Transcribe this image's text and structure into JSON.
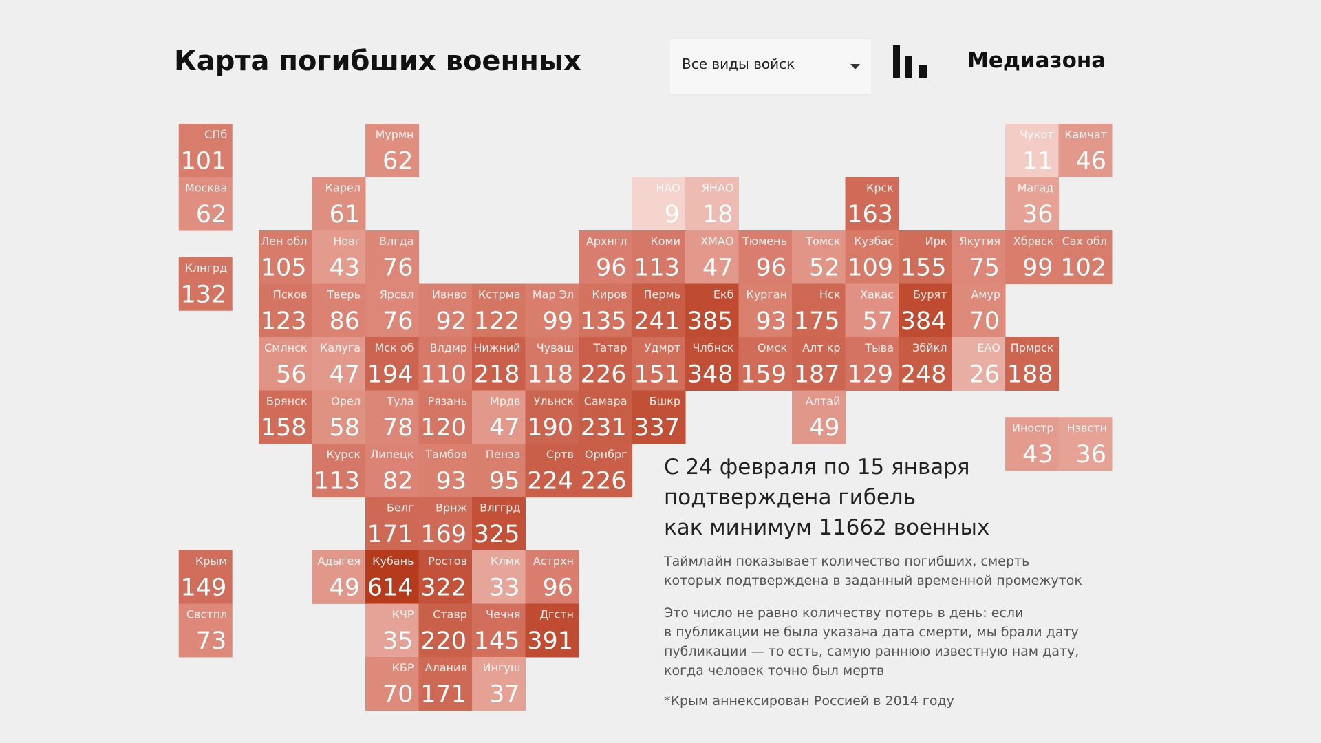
{
  "header": {
    "title": "Карта погибших военных",
    "dropdown": "Все виды войск",
    "brand": "Медиазона"
  },
  "tiles": [
    {
      "label": "СПб",
      "value": 101
    },
    {
      "label": "Мурмн",
      "value": 62
    },
    {
      "label": "Чукот",
      "value": 11
    },
    {
      "label": "Камчат",
      "value": 46
    },
    {
      "label": "Москва",
      "value": 62
    },
    {
      "label": "Карел",
      "value": 61
    },
    {
      "label": "НАО",
      "value": 9
    },
    {
      "label": "ЯНАО",
      "value": 18
    },
    {
      "label": "Крск",
      "value": 163
    },
    {
      "label": "Магад",
      "value": 36
    },
    {
      "label": "Лен обл",
      "value": 105
    },
    {
      "label": "Новг",
      "value": 43
    },
    {
      "label": "Влгда",
      "value": 76
    },
    {
      "label": "Архнгл",
      "value": 96
    },
    {
      "label": "Коми",
      "value": 113
    },
    {
      "label": "ХМАО",
      "value": 47
    },
    {
      "label": "Тюмень",
      "value": 96
    },
    {
      "label": "Томск",
      "value": 52
    },
    {
      "label": "Кузбас",
      "value": 109
    },
    {
      "label": "Ирк",
      "value": 155
    },
    {
      "label": "Якутия",
      "value": 75
    },
    {
      "label": "Хбрвск",
      "value": 99
    },
    {
      "label": "Сах обл",
      "value": 102
    },
    {
      "label": "Клнгрд",
      "value": 132
    },
    {
      "label": "Псков",
      "value": 123
    },
    {
      "label": "Тверь",
      "value": 86
    },
    {
      "label": "Ярсвл",
      "value": 76
    },
    {
      "label": "Ивнво",
      "value": 92
    },
    {
      "label": "Кстрма",
      "value": 122
    },
    {
      "label": "Мар Эл",
      "value": 99
    },
    {
      "label": "Киров",
      "value": 135
    },
    {
      "label": "Пермь",
      "value": 241
    },
    {
      "label": "Екб",
      "value": 385
    },
    {
      "label": "Курган",
      "value": 93
    },
    {
      "label": "Нск",
      "value": 175
    },
    {
      "label": "Хакас",
      "value": 57
    },
    {
      "label": "Бурят",
      "value": 384
    },
    {
      "label": "Амур",
      "value": 70
    },
    {
      "label": "Смлнск",
      "value": 56
    },
    {
      "label": "Калуга",
      "value": 47
    },
    {
      "label": "Мск об",
      "value": 194
    },
    {
      "label": "Влдмр",
      "value": 110
    },
    {
      "label": "Нижний",
      "value": 218
    },
    {
      "label": "Чуваш",
      "value": 118
    },
    {
      "label": "Татар",
      "value": 226
    },
    {
      "label": "Удмрт",
      "value": 151
    },
    {
      "label": "Члбнск",
      "value": 348
    },
    {
      "label": "Омск",
      "value": 159
    },
    {
      "label": "Алт кр",
      "value": 187
    },
    {
      "label": "Тыва",
      "value": 129
    },
    {
      "label": "Збйкл",
      "value": 248
    },
    {
      "label": "ЕАО",
      "value": 26
    },
    {
      "label": "Прмрск",
      "value": 188
    },
    {
      "label": "Брянск",
      "value": 158
    },
    {
      "label": "Орел",
      "value": 58
    },
    {
      "label": "Тула",
      "value": 78
    },
    {
      "label": "Рязань",
      "value": 120
    },
    {
      "label": "Мрдв",
      "value": 47
    },
    {
      "label": "Ульнск",
      "value": 190
    },
    {
      "label": "Самара",
      "value": 231
    },
    {
      "label": "Бшкр",
      "value": 337
    },
    {
      "label": "Алтай",
      "value": 49
    },
    {
      "label": "Иностр",
      "value": 43
    },
    {
      "label": "Нзвстн",
      "value": 36
    },
    {
      "label": "Курск",
      "value": 113
    },
    {
      "label": "Липецк",
      "value": 82
    },
    {
      "label": "Тамбов",
      "value": 93
    },
    {
      "label": "Пенза",
      "value": 95
    },
    {
      "label": "Сртв",
      "value": 224
    },
    {
      "label": "Орнбрг",
      "value": 226
    },
    {
      "label": "Белг",
      "value": 171
    },
    {
      "label": "Врнж",
      "value": 169
    },
    {
      "label": "Влггрд",
      "value": 325
    },
    {
      "label": "Крым",
      "value": 149
    },
    {
      "label": "Адыгея",
      "value": 49
    },
    {
      "label": "Кубань",
      "value": 614
    },
    {
      "label": "Ростов",
      "value": 322
    },
    {
      "label": "Клмк",
      "value": 33
    },
    {
      "label": "Астрхн",
      "value": 96
    },
    {
      "label": "Свстпл",
      "value": 73
    },
    {
      "label": "КЧР",
      "value": 35
    },
    {
      "label": "Ставр",
      "value": 220
    },
    {
      "label": "Чечня",
      "value": 145
    },
    {
      "label": "Дгстн",
      "value": 391
    },
    {
      "label": "КБР",
      "value": 70
    },
    {
      "label": "Алания",
      "value": 171
    },
    {
      "label": "Ингуш",
      "value": 37
    }
  ],
  "summary": {
    "headline": [
      "С 24 февраля по 15 января",
      "подтверждена гибель",
      "как минимум 11662 военных"
    ],
    "paragraphs": [
      [
        "Таймлайн показывает количество погибших, смерть",
        "которых подтверждена в заданный временной промежуток"
      ],
      [
        "Это число не равно количеству потерь в день: если",
        "в публикации не была указана дата смерти, мы брали дату",
        "публикации — то есть, самую раннюю известную нам дату,",
        "когда человек точно был мертв"
      ]
    ],
    "footnote": "*Крым аннексирован Россией в 2014 году"
  }
}
